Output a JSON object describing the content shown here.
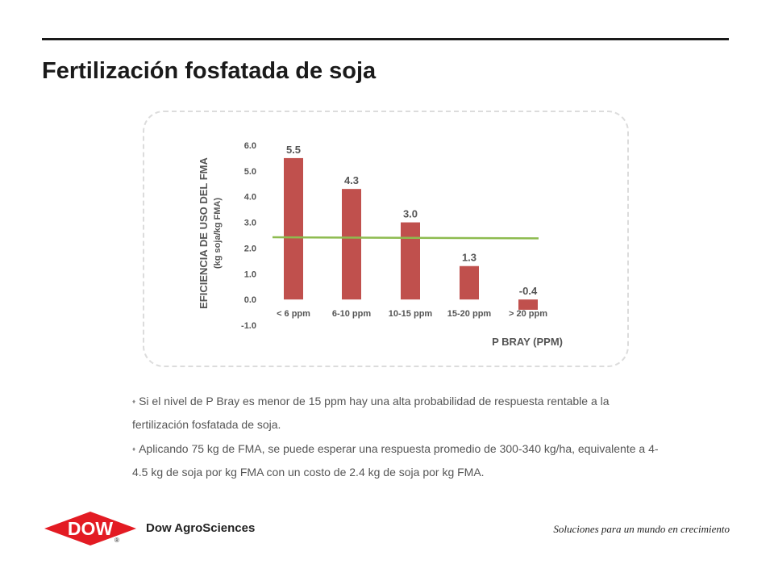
{
  "title": "Fertilización fosfatada de soja",
  "chart_data": {
    "type": "bar",
    "categories": [
      "< 6 ppm",
      "6-10 ppm",
      "10-15 ppm",
      "15-20 ppm",
      "> 20 ppm"
    ],
    "values": [
      5.5,
      4.3,
      3.0,
      1.3,
      -0.4
    ],
    "data_labels": [
      "5.5",
      "4.3",
      "3.0",
      "1.3",
      "-0.4"
    ],
    "ylabel_line1": "EFICIENCIA DE USO DEL FMA",
    "ylabel_line2": "(kg soja/kg FMA)",
    "xlabel": "P BRAY (PPM)",
    "yticks": [
      "6.0",
      "5.0",
      "4.0",
      "3.0",
      "2.0",
      "1.0",
      "0.0",
      "-1.0"
    ],
    "ylim": [
      -1.0,
      6.0
    ],
    "reference_line": {
      "start": 2.42,
      "end": 2.38
    },
    "bar_color": "#c0504d",
    "reference_color": "#8dbb4f",
    "grid": false
  },
  "bullets": [
    {
      "text": "Si el nivel de P Bray es menor de 15 ppm hay una alta probabilidad de respuesta rentable a la fertilización fosfatada de soja."
    },
    {
      "text": "Aplicando 75 kg de FMA, se puede esperar una respuesta promedio de 300-340 kg/ha, equivalente a 4-4.5 kg de soja por kg FMA con un costo de 2.4 kg de soja por kg FMA."
    }
  ],
  "footer": {
    "logo_text": "DOW",
    "logo_reg": "®",
    "company": "Dow AgroSciences",
    "tagline": "Soluciones para un mundo en crecimiento",
    "logo_color": "#e31b23"
  }
}
